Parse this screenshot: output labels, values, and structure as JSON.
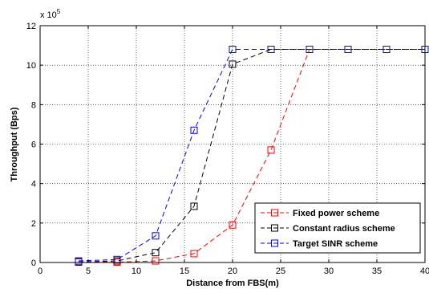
{
  "chart_data": {
    "type": "line",
    "title": "",
    "xlabel": "Distance from FBS(m)",
    "ylabel": "Throughput (Bps)",
    "y_multiplier_label": "x 10",
    "y_multiplier_exponent": "5",
    "xlim": [
      0,
      40
    ],
    "ylim": [
      0,
      12
    ],
    "x_ticks": [
      0,
      5,
      10,
      15,
      20,
      25,
      30,
      35,
      40
    ],
    "y_ticks": [
      0,
      2,
      4,
      6,
      8,
      10,
      12
    ],
    "grid": true,
    "legend_position": "bottom-right",
    "series": [
      {
        "name": "Fixed power scheme",
        "color": "#ff0000",
        "marker": "square",
        "line_style": "dashed",
        "x": [
          4,
          8,
          12,
          16,
          20,
          24,
          28,
          32,
          36,
          40
        ],
        "y": [
          0.02,
          0.02,
          0.08,
          0.45,
          1.9,
          5.7,
          10.8,
          10.8,
          10.8,
          10.8
        ]
      },
      {
        "name": "Constant radius scheme",
        "color": "#000000",
        "marker": "square",
        "line_style": "dashed",
        "x": [
          4,
          8,
          12,
          16,
          20,
          24,
          28,
          32,
          36,
          40
        ],
        "y": [
          0.03,
          0.08,
          0.5,
          2.85,
          10.05,
          10.8,
          10.8,
          10.8,
          10.8,
          10.8
        ]
      },
      {
        "name": "Target SINR scheme",
        "color": "#0000ff",
        "marker": "square",
        "line_style": "dashed",
        "x": [
          4,
          8,
          12,
          16,
          20,
          24,
          28,
          32,
          36,
          40
        ],
        "y": [
          0.08,
          0.15,
          1.35,
          6.7,
          10.8,
          10.8,
          10.8,
          10.8,
          10.8,
          10.8
        ]
      }
    ]
  }
}
